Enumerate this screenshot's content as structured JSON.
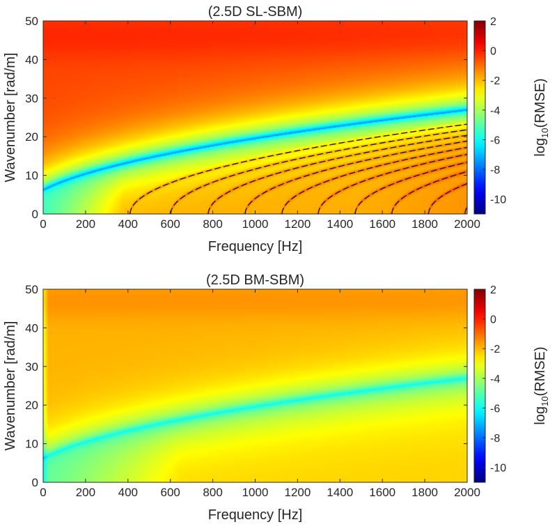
{
  "chart_data": [
    {
      "type": "heatmap",
      "title": "(2.5D SL-SBM)",
      "xlabel": "Frequency [Hz]",
      "ylabel": "Wavenumber [rad/m]",
      "xlim": [
        0,
        2000
      ],
      "ylim": [
        0,
        50
      ],
      "xticks": [
        "0",
        "200",
        "400",
        "600",
        "800",
        "1000",
        "1200",
        "1400",
        "1600",
        "1800",
        "2000"
      ],
      "yticks": [
        "0",
        "10",
        "20",
        "30",
        "40",
        "50"
      ],
      "colorbar": {
        "label": "log10(RMSE)",
        "label_base": "log",
        "label_sub": "10",
        "label_rest": "(RMSE)",
        "range": [
          -11,
          2
        ],
        "ticks": [
          "2",
          "0",
          "-2",
          "-4",
          "-6",
          "-8",
          "-10"
        ]
      },
      "minimum_curve": "k = sqrt(0.3402*f + 36)",
      "dashed_curve_cutoffs_hz": [
        410,
        602,
        779,
        953,
        1127,
        1298,
        1472,
        1645,
        1818,
        1990
      ]
    },
    {
      "type": "heatmap",
      "title": "(2.5D BM-SBM)",
      "xlabel": "Frequency [Hz]",
      "ylabel": "Wavenumber [rad/m]",
      "xlim": [
        0,
        2000
      ],
      "ylim": [
        0,
        50
      ],
      "xticks": [
        "0",
        "200",
        "400",
        "600",
        "800",
        "1000",
        "1200",
        "1400",
        "1600",
        "1800",
        "2000"
      ],
      "yticks": [
        "0",
        "10",
        "20",
        "30",
        "40",
        "50"
      ],
      "colorbar": {
        "label": "log10(RMSE)",
        "label_base": "log",
        "label_sub": "10",
        "label_rest": "(RMSE)",
        "range": [
          -11,
          2
        ],
        "ticks": [
          "2",
          "0",
          "-2",
          "-4",
          "-6",
          "-8",
          "-10"
        ]
      },
      "minimum_curve": "k = sqrt(0.3402*f + 36)"
    }
  ]
}
